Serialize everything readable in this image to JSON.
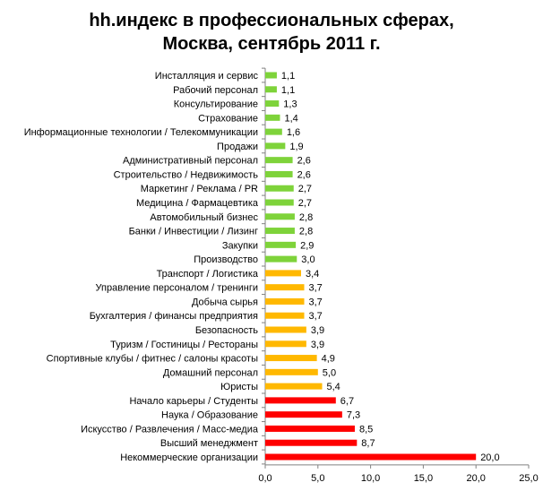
{
  "chart_data": {
    "type": "bar",
    "orientation": "horizontal",
    "title_lines": [
      "hh.индекс в профессиональных сферах,",
      "Москва, сентябрь 2011 г."
    ],
    "categories": [
      "Инсталляция и сервис",
      "Рабочий персонал",
      "Консультирование",
      "Страхование",
      "Информационные технологии / Телекоммуникации",
      "Продажи",
      "Административный персонал",
      "Строительство / Недвижимость",
      "Маркетинг / Реклама / PR",
      "Медицина / Фармацевтика",
      "Автомобильный бизнес",
      "Банки / Инвестиции / Лизинг",
      "Закупки",
      "Производство",
      "Транспорт / Логистика",
      "Управление персоналом / тренинги",
      "Добыча сырья",
      "Бухгалтерия / финансы предприятия",
      "Безопасность",
      "Туризм / Гостиницы / Рестораны",
      "Спортивные клубы / фитнес / салоны красоты",
      "Домашний персонал",
      "Юристы",
      "Начало карьеры / Студенты",
      "Наука / Образование",
      "Искусство / Развлечения / Масс-медиа",
      "Высший менеджмент",
      "Некоммерческие организации"
    ],
    "values": [
      1.1,
      1.1,
      1.3,
      1.4,
      1.6,
      1.9,
      2.6,
      2.6,
      2.7,
      2.7,
      2.8,
      2.8,
      2.9,
      3.0,
      3.4,
      3.7,
      3.7,
      3.7,
      3.9,
      3.9,
      4.9,
      5.0,
      5.4,
      6.7,
      7.3,
      8.5,
      8.7,
      20.0
    ],
    "value_labels": [
      "1,1",
      "1,1",
      "1,3",
      "1,4",
      "1,6",
      "1,9",
      "2,6",
      "2,6",
      "2,7",
      "2,7",
      "2,8",
      "2,8",
      "2,9",
      "3,0",
      "3,4",
      "3,7",
      "3,7",
      "3,7",
      "3,9",
      "3,9",
      "4,9",
      "5,0",
      "5,4",
      "6,7",
      "7,3",
      "8,5",
      "8,7",
      "20,0"
    ],
    "bar_colors": [
      "#7ed33a",
      "#7ed33a",
      "#7ed33a",
      "#7ed33a",
      "#7ed33a",
      "#7ed33a",
      "#7ed33a",
      "#7ed33a",
      "#7ed33a",
      "#7ed33a",
      "#7ed33a",
      "#7ed33a",
      "#7ed33a",
      "#7ed33a",
      "#ffb800",
      "#ffb800",
      "#ffb800",
      "#ffb800",
      "#ffb800",
      "#ffb800",
      "#ffb800",
      "#ffb800",
      "#ffb800",
      "#ff0000",
      "#ff0000",
      "#ff0000",
      "#ff0000",
      "#ff0000"
    ],
    "xlim": [
      0,
      25
    ],
    "xticks": [
      0,
      5,
      10,
      15,
      20,
      25
    ],
    "xtick_labels": [
      "0,0",
      "5,0",
      "10,0",
      "15,0",
      "20,0",
      "25,0"
    ],
    "grid": false,
    "legend": "none"
  }
}
